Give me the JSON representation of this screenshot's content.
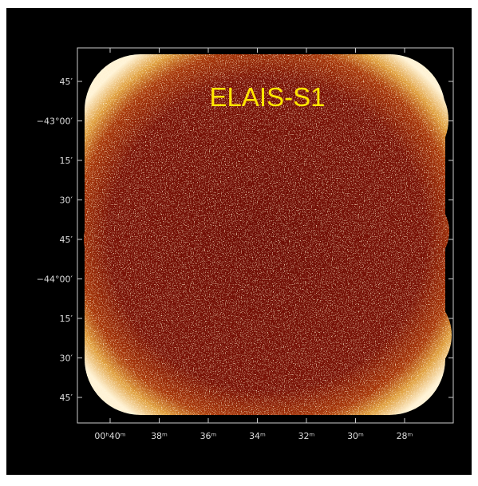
{
  "title": "ELAIS-S1",
  "y_axis": {
    "ticks": [
      "45′",
      "−43°00′",
      "15′",
      "30′",
      "45′",
      "−44°00′",
      "15′",
      "30′",
      "45′"
    ]
  },
  "x_axis": {
    "ticks": [
      "00ʰ40ᵐ",
      "38ᵐ",
      "36ᵐ",
      "34ᵐ",
      "32ᵐ",
      "30ᵐ",
      "28ᵐ"
    ]
  }
}
